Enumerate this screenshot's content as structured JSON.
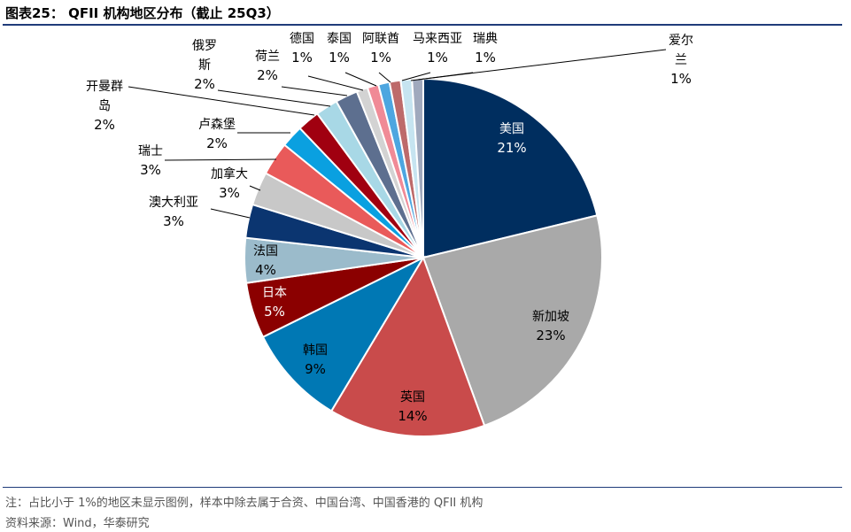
{
  "header": {
    "title": "图表25：  QFII 机构地区分布（截止 25Q3）"
  },
  "footer": {
    "note": "注：占比小于 1%的地区未显示图例，样本中除去属于合资、中国台湾、中国香港的 QFII 机构",
    "source": "资料来源：Wind，华泰研究"
  },
  "chart_data": {
    "type": "pie",
    "title": "QFII 机构地区分布（截止 25Q3）",
    "start_angle_deg": 0,
    "direction": "clockwise",
    "slices": [
      {
        "label": "美国",
        "value": 21,
        "display": "21%",
        "color": "#002e5f",
        "text_color": "#ffffff"
      },
      {
        "label": "新加坡",
        "value": 23,
        "display": "23%",
        "color": "#a9a9a9",
        "text_color": "#000000"
      },
      {
        "label": "英国",
        "value": 14,
        "display": "14%",
        "color": "#c94b4b",
        "text_color": "#000000"
      },
      {
        "label": "韩国",
        "value": 9,
        "display": "9%",
        "color": "#0078b4",
        "text_color": "#000000"
      },
      {
        "label": "日本",
        "value": 5,
        "display": "5%",
        "color": "#8b0000",
        "text_color": "#ffffff"
      },
      {
        "label": "法国",
        "value": 4,
        "display": "4%",
        "color": "#9bbbcb",
        "text_color": "#000000"
      },
      {
        "label": "澳大利亚",
        "value": 3,
        "display": "3%",
        "color": "#0b3570",
        "text_color": "#000000"
      },
      {
        "label": "加拿大",
        "value": 3,
        "display": "3%",
        "color": "#c8c8c8",
        "text_color": "#000000"
      },
      {
        "label": "瑞士",
        "value": 3,
        "display": "3%",
        "color": "#e95a5a",
        "text_color": "#000000"
      },
      {
        "label": "卢森堡",
        "value": 2,
        "display": "2%",
        "color": "#0aa0e0",
        "text_color": "#000000"
      },
      {
        "label": "开曼群岛",
        "value": 2,
        "display": "2%",
        "color": "#a00010",
        "text_color": "#000000"
      },
      {
        "label": "俄罗斯",
        "value": 2,
        "display": "2%",
        "color": "#a8d8e6",
        "text_color": "#000000"
      },
      {
        "label": "荷兰",
        "value": 2,
        "display": "2%",
        "color": "#5d6f8f",
        "text_color": "#000000"
      },
      {
        "label": "德国",
        "value": 1,
        "display": "1%",
        "color": "#d3d3d3",
        "text_color": "#000000"
      },
      {
        "label": "泰国",
        "value": 1,
        "display": "1%",
        "color": "#f08a96",
        "text_color": "#000000"
      },
      {
        "label": "阿联酋",
        "value": 1,
        "display": "1%",
        "color": "#4da6e0",
        "text_color": "#000000"
      },
      {
        "label": "马来西亚",
        "value": 1,
        "display": "1%",
        "color": "#bd6a6a",
        "text_color": "#000000"
      },
      {
        "label": "瑞典",
        "value": 1,
        "display": "1%",
        "color": "#c6e4f0",
        "text_color": "#000000"
      },
      {
        "label": "爱尔兰",
        "value": 1,
        "display": "1%",
        "color": "#a0a9bd",
        "text_color": "#000000"
      }
    ]
  }
}
